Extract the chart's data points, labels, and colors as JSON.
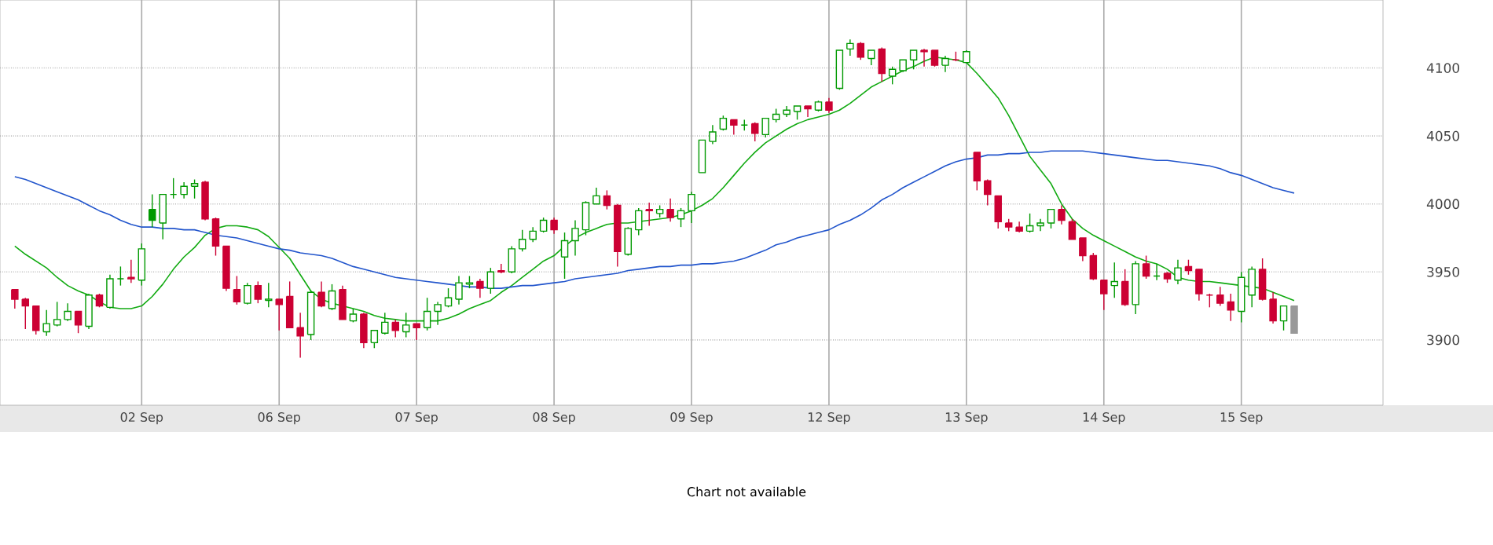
{
  "chart_data": {
    "type": "candlestick",
    "categories": [
      null,
      null,
      null,
      null,
      null,
      null,
      null,
      null,
      null,
      null,
      null,
      null,
      "02 Sep",
      null,
      null,
      null,
      null,
      null,
      null,
      null,
      null,
      null,
      null,
      null,
      null,
      "06 Sep",
      null,
      null,
      null,
      null,
      null,
      null,
      null,
      null,
      null,
      null,
      null,
      null,
      "07 Sep",
      null,
      null,
      null,
      null,
      null,
      null,
      null,
      null,
      null,
      null,
      null,
      null,
      "08 Sep",
      null,
      null,
      null,
      null,
      null,
      null,
      null,
      null,
      null,
      null,
      null,
      null,
      "09 Sep",
      null,
      null,
      null,
      null,
      null,
      null,
      null,
      null,
      null,
      null,
      null,
      null,
      "12 Sep",
      null,
      null,
      null,
      null,
      null,
      null,
      null,
      null,
      null,
      null,
      null,
      null,
      "13 Sep",
      null,
      null,
      null,
      null,
      null,
      null,
      null,
      null,
      null,
      null,
      null,
      null,
      "14 Sep",
      null,
      null,
      null,
      null,
      null,
      null,
      null,
      null,
      null,
      null,
      null,
      null,
      "15 Sep",
      null,
      null,
      null,
      null,
      null
    ],
    "ohlc": [
      [
        3937,
        3937,
        3923,
        3930
      ],
      [
        3930,
        3931,
        3908,
        3925
      ],
      [
        3925,
        3925,
        3904,
        3907
      ],
      [
        3906,
        3922,
        3903,
        3912
      ],
      [
        3911,
        3928,
        3910,
        3915
      ],
      [
        3915,
        3927,
        3914,
        3921
      ],
      [
        3921,
        3921,
        3905,
        3911
      ],
      [
        3910,
        3934,
        3908,
        3933
      ],
      [
        3933,
        3934,
        3924,
        3925
      ],
      [
        3924,
        3948,
        3923,
        3945
      ],
      [
        3945,
        3954,
        3940,
        3945
      ],
      [
        3946,
        3959,
        3942,
        3945
      ],
      [
        3944,
        3971,
        3940,
        3967
      ],
      [
        3996,
        4007,
        3983,
        3988
      ],
      [
        3986,
        4007,
        3974,
        4007
      ],
      [
        4007,
        4019,
        4004,
        4007
      ],
      [
        4007,
        4016,
        4004,
        4013
      ],
      [
        4013,
        4018,
        4004,
        4015
      ],
      [
        4016,
        4017,
        3988,
        3989
      ],
      [
        3989,
        3990,
        3962,
        3969
      ],
      [
        3969,
        3969,
        3936,
        3938
      ],
      [
        3937,
        3947,
        3926,
        3928
      ],
      [
        3927,
        3942,
        3926,
        3940
      ],
      [
        3940,
        3943,
        3927,
        3930
      ],
      [
        3929,
        3942,
        3924,
        3930
      ],
      [
        3930,
        3930,
        3907,
        3926
      ],
      [
        3932,
        3943,
        3909,
        3909
      ],
      [
        3909,
        3920,
        3887,
        3903
      ],
      [
        3904,
        3936,
        3900,
        3935
      ],
      [
        3935,
        3943,
        3924,
        3925
      ],
      [
        3923,
        3941,
        3922,
        3936
      ],
      [
        3937,
        3940,
        3915,
        3915
      ],
      [
        3914,
        3923,
        3913,
        3919
      ],
      [
        3919,
        3920,
        3894,
        3898
      ],
      [
        3898,
        3907,
        3894,
        3907
      ],
      [
        3905,
        3920,
        3904,
        3913
      ],
      [
        3913,
        3915,
        3902,
        3907
      ],
      [
        3906,
        3920,
        3902,
        3911
      ],
      [
        3912,
        3912,
        3900,
        3909
      ],
      [
        3909,
        3931,
        3907,
        3921
      ],
      [
        3921,
        3928,
        3911,
        3926
      ],
      [
        3925,
        3938,
        3924,
        3931
      ],
      [
        3930,
        3947,
        3926,
        3942
      ],
      [
        3941,
        3947,
        3938,
        3942
      ],
      [
        3943,
        3945,
        3931,
        3938
      ],
      [
        3938,
        3953,
        3934,
        3950
      ],
      [
        3951,
        3956,
        3949,
        3950
      ],
      [
        3950,
        3969,
        3949,
        3967
      ],
      [
        3967,
        3981,
        3965,
        3974
      ],
      [
        3974,
        3983,
        3972,
        3980
      ],
      [
        3980,
        3990,
        3979,
        3988
      ],
      [
        3988,
        3990,
        3978,
        3981
      ],
      [
        3961,
        3979,
        3945,
        3973
      ],
      [
        3973,
        3988,
        3962,
        3982
      ],
      [
        3981,
        4002,
        3977,
        4001
      ],
      [
        4000,
        4012,
        4000,
        4006
      ],
      [
        4006,
        4010,
        3996,
        3999
      ],
      [
        3999,
        4000,
        3954,
        3965
      ],
      [
        3963,
        3983,
        3962,
        3982
      ],
      [
        3981,
        3997,
        3977,
        3995
      ],
      [
        3996,
        4001,
        3984,
        3995
      ],
      [
        3993,
        3999,
        3990,
        3996
      ],
      [
        3996,
        4004,
        3987,
        3990
      ],
      [
        3989,
        3997,
        3983,
        3995
      ],
      [
        3995,
        4009,
        3986,
        4007
      ],
      [
        4023,
        4047,
        4023,
        4047
      ],
      [
        4046,
        4058,
        4044,
        4053
      ],
      [
        4055,
        4065,
        4054,
        4063
      ],
      [
        4062,
        4062,
        4051,
        4058
      ],
      [
        4058,
        4062,
        4054,
        4058
      ],
      [
        4059,
        4060,
        4046,
        4052
      ],
      [
        4051,
        4063,
        4049,
        4063
      ],
      [
        4062,
        4070,
        4060,
        4066
      ],
      [
        4066,
        4072,
        4064,
        4069
      ],
      [
        4068,
        4072,
        4062,
        4072
      ],
      [
        4072,
        4072,
        4064,
        4070
      ],
      [
        4069,
        4076,
        4068,
        4075
      ],
      [
        4075,
        4078,
        4067,
        4069
      ],
      [
        4085,
        4113,
        4084,
        4113
      ],
      [
        4114,
        4121,
        4109,
        4118
      ],
      [
        4118,
        4119,
        4106,
        4108
      ],
      [
        4107,
        4113,
        4102,
        4113
      ],
      [
        4114,
        4115,
        4090,
        4096
      ],
      [
        4094,
        4101,
        4088,
        4099
      ],
      [
        4098,
        4106,
        4097,
        4106
      ],
      [
        4106,
        4113,
        4099,
        4113
      ],
      [
        4113,
        4114,
        4101,
        4112
      ],
      [
        4113,
        4113,
        4101,
        4102
      ],
      [
        4102,
        4109,
        4097,
        4107
      ],
      [
        4106,
        4112,
        4105,
        4106
      ],
      [
        4104,
        4113,
        4104,
        4112
      ],
      [
        4038,
        4038,
        4010,
        4017
      ],
      [
        4017,
        4018,
        3999,
        4007
      ],
      [
        4006,
        4006,
        3982,
        3987
      ],
      [
        3986,
        3989,
        3980,
        3983
      ],
      [
        3983,
        3987,
        3979,
        3980
      ],
      [
        3980,
        3993,
        3979,
        3984
      ],
      [
        3984,
        3989,
        3980,
        3986
      ],
      [
        3986,
        3996,
        3982,
        3996
      ],
      [
        3996,
        3999,
        3985,
        3988
      ],
      [
        3987,
        3989,
        3974,
        3974
      ],
      [
        3975,
        3975,
        3958,
        3962
      ],
      [
        3962,
        3964,
        3944,
        3945
      ],
      [
        3944,
        3944,
        3922,
        3934
      ],
      [
        3940,
        3957,
        3931,
        3943
      ],
      [
        3943,
        3952,
        3925,
        3926
      ],
      [
        3926,
        3958,
        3919,
        3956
      ],
      [
        3956,
        3962,
        3945,
        3947
      ],
      [
        3947,
        3956,
        3944,
        3947
      ],
      [
        3949,
        3950,
        3942,
        3945
      ],
      [
        3944,
        3959,
        3941,
        3953
      ],
      [
        3954,
        3959,
        3948,
        3951
      ],
      [
        3952,
        3952,
        3929,
        3934
      ],
      [
        3933,
        3934,
        3924,
        3933
      ],
      [
        3933,
        3939,
        3925,
        3927
      ],
      [
        3928,
        3934,
        3914,
        3922
      ],
      [
        3921,
        3950,
        3913,
        3946
      ],
      [
        3933,
        3954,
        3924,
        3952
      ],
      [
        3952,
        3960,
        3929,
        3930
      ],
      [
        3930,
        3935,
        3912,
        3914
      ],
      [
        3914,
        3925,
        3907,
        3925
      ],
      [
        3925,
        3925,
        3905,
        3905
      ]
    ],
    "colors": [
      "#cc0033",
      "#cc0033",
      "#cc0033",
      "#009900",
      "#009900",
      "#009900",
      "#cc0033",
      "#009900",
      "#cc0033",
      "#009900",
      "#009900",
      "#cc0033",
      "#009900",
      "#009900",
      "#009900",
      "#009900",
      "#009900",
      "#009900",
      "#cc0033",
      "#cc0033",
      "#cc0033",
      "#cc0033",
      "#009900",
      "#cc0033",
      "#009900",
      "#cc0033",
      "#cc0033",
      "#cc0033",
      "#009900",
      "#cc0033",
      "#009900",
      "#cc0033",
      "#009900",
      "#cc0033",
      "#009900",
      "#009900",
      "#cc0033",
      "#009900",
      "#cc0033",
      "#009900",
      "#009900",
      "#009900",
      "#009900",
      "#009900",
      "#cc0033",
      "#009900",
      "#cc0033",
      "#009900",
      "#009900",
      "#009900",
      "#009900",
      "#cc0033",
      "#009900",
      "#009900",
      "#009900",
      "#009900",
      "#cc0033",
      "#cc0033",
      "#009900",
      "#009900",
      "#cc0033",
      "#009900",
      "#cc0033",
      "#009900",
      "#009900",
      "#009900",
      "#009900",
      "#009900",
      "#cc0033",
      "#009900",
      "#cc0033",
      "#009900",
      "#009900",
      "#009900",
      "#009900",
      "#cc0033",
      "#009900",
      "#cc0033",
      "#009900",
      "#009900",
      "#cc0033",
      "#009900",
      "#cc0033",
      "#009900",
      "#009900",
      "#009900",
      "#cc0033",
      "#cc0033",
      "#009900",
      "#cc0033",
      "#009900",
      "#cc0033",
      "#cc0033",
      "#cc0033",
      "#cc0033",
      "#cc0033",
      "#009900",
      "#009900",
      "#009900",
      "#cc0033",
      "#cc0033",
      "#cc0033",
      "#cc0033",
      "#cc0033",
      "#009900",
      "#cc0033",
      "#009900",
      "#cc0033",
      "#009900",
      "#cc0033",
      "#009900",
      "#cc0033",
      "#cc0033",
      "#cc0033",
      "#cc0033",
      "#cc0033",
      "#009900",
      "#009900",
      "#cc0033",
      "#cc0033",
      "#009900",
      "#999999"
    ],
    "series": [
      {
        "type": "line",
        "color": "#11aa11",
        "values": [
          3969,
          3963,
          3958,
          3953,
          3946,
          3940,
          3936,
          3933,
          3928,
          3924,
          3923,
          3923,
          3925,
          3932,
          3941,
          3952,
          3961,
          3968,
          3977,
          3982,
          3984,
          3984,
          3983,
          3981,
          3976,
          3968,
          3960,
          3948,
          3936,
          3930,
          3927,
          3925,
          3923,
          3921,
          3918,
          3916,
          3915,
          3914,
          3914,
          3914,
          3914,
          3916,
          3919,
          3923,
          3926,
          3929,
          3935,
          3940,
          3946,
          3952,
          3958,
          3962,
          3969,
          3975,
          3979,
          3982,
          3985,
          3986,
          3986,
          3987,
          3988,
          3989,
          3990,
          3992,
          3995,
          3999,
          4004,
          4012,
          4021,
          4030,
          4038,
          4045,
          4050,
          4055,
          4059,
          4062,
          4064,
          4066,
          4069,
          4074,
          4080,
          4086,
          4090,
          4094,
          4098,
          4101,
          4105,
          4108,
          4107,
          4106,
          4104,
          4096,
          4087,
          4078,
          4065,
          4050,
          4035,
          4025,
          4015,
          4000,
          3989,
          3982,
          3977,
          3973,
          3969,
          3965,
          3961,
          3958,
          3956,
          3952,
          3946,
          3944,
          3943,
          3943,
          3942,
          3941,
          3940,
          3939,
          3938,
          3935,
          3932,
          3929
        ]
      },
      {
        "type": "line",
        "color": "#2255cc",
        "values": [
          4020,
          4018,
          4015,
          4012,
          4009,
          4006,
          4003,
          3999,
          3995,
          3992,
          3988,
          3985,
          3983,
          3983,
          3982,
          3982,
          3981,
          3981,
          3979,
          3977,
          3976,
          3975,
          3973,
          3971,
          3969,
          3967,
          3966,
          3964,
          3963,
          3962,
          3960,
          3957,
          3954,
          3952,
          3950,
          3948,
          3946,
          3945,
          3944,
          3943,
          3942,
          3941,
          3940,
          3939,
          3939,
          3938,
          3938,
          3939,
          3940,
          3940,
          3941,
          3942,
          3943,
          3945,
          3946,
          3947,
          3948,
          3949,
          3951,
          3952,
          3953,
          3954,
          3954,
          3955,
          3955,
          3956,
          3956,
          3957,
          3958,
          3960,
          3963,
          3966,
          3970,
          3972,
          3975,
          3977,
          3979,
          3981,
          3985,
          3988,
          3992,
          3997,
          4003,
          4007,
          4012,
          4016,
          4020,
          4024,
          4028,
          4031,
          4033,
          4034,
          4036,
          4036,
          4037,
          4037,
          4038,
          4038,
          4039,
          4039,
          4039,
          4039,
          4038,
          4037,
          4036,
          4035,
          4034,
          4033,
          4032,
          4032,
          4031,
          4030,
          4029,
          4028,
          4026,
          4023,
          4021,
          4018,
          4015,
          4012,
          4010,
          4008
        ]
      }
    ],
    "ylim": [
      3852,
      4150
    ],
    "yticks": [
      3900,
      3950,
      4000,
      4050,
      4100
    ],
    "grid": true,
    "annotations": [
      "Chart not available"
    ]
  }
}
